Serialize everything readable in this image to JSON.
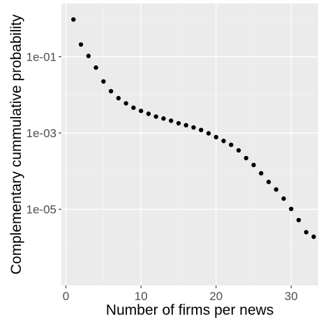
{
  "chart_data": {
    "type": "scatter",
    "xlabel": "Number of firms per news",
    "ylabel": "Complementary cummulative probability",
    "x_scale": "linear",
    "y_scale": "log",
    "xlim": [
      -0.6,
      33.6
    ],
    "ylim": [
      1e-07,
      2.5
    ],
    "x_ticks": [
      0,
      10,
      20,
      30
    ],
    "x_tick_labels": [
      "0",
      "10",
      "20",
      "30"
    ],
    "y_ticks": [
      1e-05,
      0.001,
      0.1
    ],
    "y_tick_labels": [
      "1e-05",
      "1e-03",
      "1e-01"
    ],
    "grid": true,
    "legend": "none",
    "point_color": "#000000",
    "panel_color": "#ebebeb",
    "points": [
      {
        "x": 1,
        "y": 0.95
      },
      {
        "x": 2,
        "y": 0.21
      },
      {
        "x": 3,
        "y": 0.105
      },
      {
        "x": 4,
        "y": 0.052
      },
      {
        "x": 5,
        "y": 0.0225
      },
      {
        "x": 6,
        "y": 0.0125
      },
      {
        "x": 7,
        "y": 0.0082
      },
      {
        "x": 8,
        "y": 0.006
      },
      {
        "x": 9,
        "y": 0.0046
      },
      {
        "x": 10,
        "y": 0.0038
      },
      {
        "x": 11,
        "y": 0.0032
      },
      {
        "x": 12,
        "y": 0.0027
      },
      {
        "x": 13,
        "y": 0.0024
      },
      {
        "x": 14,
        "y": 0.0021
      },
      {
        "x": 15,
        "y": 0.0018
      },
      {
        "x": 16,
        "y": 0.0016
      },
      {
        "x": 17,
        "y": 0.0014
      },
      {
        "x": 18,
        "y": 0.0012
      },
      {
        "x": 19,
        "y": 0.00098
      },
      {
        "x": 20,
        "y": 0.00078
      },
      {
        "x": 21,
        "y": 0.00062
      },
      {
        "x": 22,
        "y": 0.00049
      },
      {
        "x": 23,
        "y": 0.00035
      },
      {
        "x": 24,
        "y": 0.00022
      },
      {
        "x": 25,
        "y": 0.000145
      },
      {
        "x": 26,
        "y": 8.8e-05
      },
      {
        "x": 27,
        "y": 5.2e-05
      },
      {
        "x": 28,
        "y": 3.3e-05
      },
      {
        "x": 29,
        "y": 1.9e-05
      },
      {
        "x": 30,
        "y": 1.02e-05
      },
      {
        "x": 31,
        "y": 5.2e-06
      },
      {
        "x": 32,
        "y": 2.5e-06
      },
      {
        "x": 33,
        "y": 1.9e-06
      }
    ]
  }
}
